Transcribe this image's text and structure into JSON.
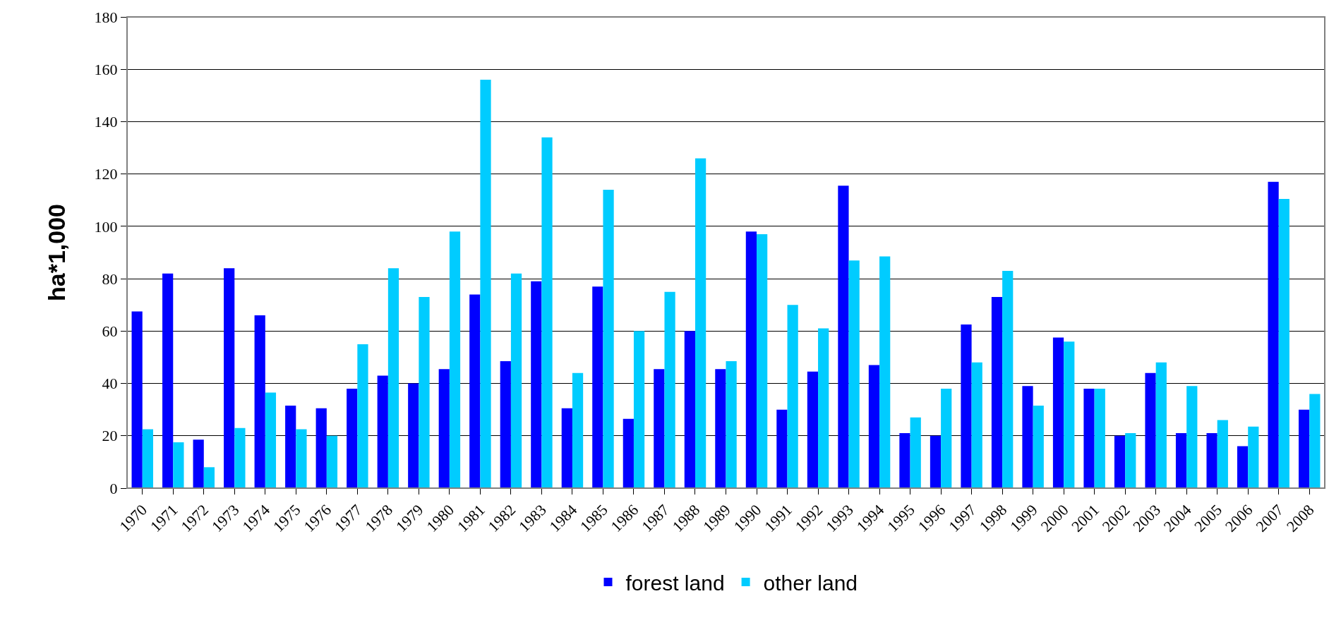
{
  "chart_data": {
    "type": "bar",
    "ylabel": "ha*1,000",
    "categories": [
      "1970",
      "1971",
      "1972",
      "1973",
      "1974",
      "1975",
      "1976",
      "1977",
      "1978",
      "1979",
      "1980",
      "1981",
      "1982",
      "1983",
      "1984",
      "1985",
      "1986",
      "1987",
      "1988",
      "1989",
      "1990",
      "1991",
      "1992",
      "1993",
      "1994",
      "1995",
      "1996",
      "1997",
      "1998",
      "1999",
      "2000",
      "2001",
      "2002",
      "2003",
      "2004",
      "2005",
      "2006",
      "2007",
      "2008"
    ],
    "series": [
      {
        "name": "forest land",
        "color": "#0000ff",
        "values": [
          67.5,
          82,
          18.5,
          84,
          66,
          31.5,
          30.5,
          38,
          43,
          40,
          45.5,
          74,
          48.5,
          79,
          30.5,
          77,
          26.5,
          45.5,
          60,
          45.5,
          98,
          30,
          44.5,
          115.5,
          47,
          21,
          20,
          62.5,
          73,
          39,
          57.5,
          38,
          20,
          44,
          21,
          21,
          16,
          117,
          30
        ]
      },
      {
        "name": "other land",
        "color": "#00ccff",
        "values": [
          22.5,
          17.5,
          8,
          23,
          36.5,
          22.5,
          20,
          55,
          84,
          73,
          98,
          156,
          82,
          134,
          44,
          114,
          60,
          75,
          126,
          48.5,
          97,
          70,
          61,
          87,
          88.5,
          27,
          38,
          48,
          83,
          31.5,
          56,
          38,
          21,
          48,
          39,
          26,
          23.5,
          110.5,
          36
        ]
      }
    ],
    "ylim": [
      0,
      180
    ],
    "yticks": [
      0,
      20,
      40,
      60,
      80,
      100,
      120,
      140,
      160,
      180
    ],
    "grid": "y",
    "legend": "bottom"
  }
}
